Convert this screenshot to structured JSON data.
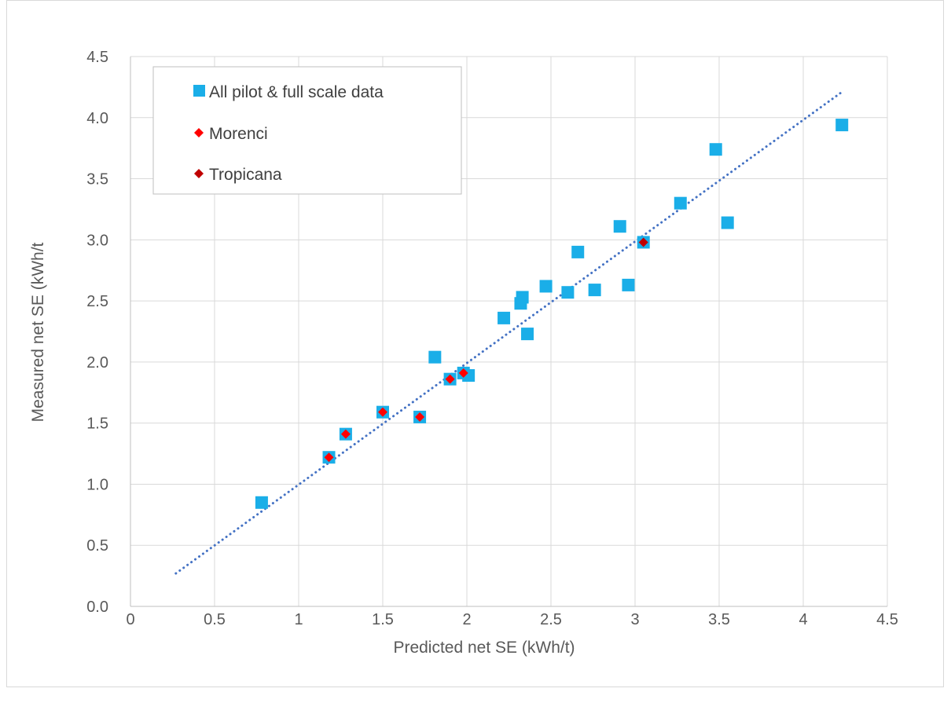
{
  "chart_data": {
    "type": "scatter",
    "title": "",
    "xlabel": "Predicted net SE (kWh/t)",
    "ylabel": "Measured net SE (kWh/t",
    "xlim": [
      0,
      4.5
    ],
    "ylim": [
      0,
      4.5
    ],
    "x_ticks": [
      "0",
      "0.5",
      "1",
      "1.5",
      "2",
      "2.5",
      "3",
      "3.5",
      "4",
      "4.5"
    ],
    "y_ticks": [
      "0.0",
      "0.5",
      "1.0",
      "1.5",
      "2.0",
      "2.5",
      "3.0",
      "3.5",
      "4.0",
      "4.5"
    ],
    "grid": true,
    "legend_position": "top-left",
    "series": [
      {
        "name": "All pilot & full scale data",
        "marker": "square",
        "color": "#1aaee8",
        "points": [
          [
            0.78,
            0.85
          ],
          [
            1.18,
            1.22
          ],
          [
            1.28,
            1.41
          ],
          [
            1.5,
            1.59
          ],
          [
            1.72,
            1.55
          ],
          [
            1.81,
            2.04
          ],
          [
            1.9,
            1.86
          ],
          [
            1.98,
            1.91
          ],
          [
            2.01,
            1.89
          ],
          [
            2.22,
            2.36
          ],
          [
            2.32,
            2.48
          ],
          [
            2.33,
            2.53
          ],
          [
            2.36,
            2.23
          ],
          [
            2.47,
            2.62
          ],
          [
            2.6,
            2.57
          ],
          [
            2.66,
            2.9
          ],
          [
            2.76,
            2.59
          ],
          [
            2.91,
            3.11
          ],
          [
            2.96,
            2.63
          ],
          [
            3.05,
            2.98
          ],
          [
            3.27,
            3.3
          ],
          [
            3.48,
            3.74
          ],
          [
            3.55,
            3.14
          ],
          [
            4.23,
            3.94
          ]
        ]
      },
      {
        "name": "Morenci",
        "marker": "diamond",
        "color": "#ff0000",
        "points": [
          [
            1.18,
            1.22
          ],
          [
            1.28,
            1.41
          ],
          [
            1.5,
            1.59
          ],
          [
            1.72,
            1.55
          ],
          [
            1.9,
            1.86
          ],
          [
            1.98,
            1.91
          ]
        ]
      },
      {
        "name": "Tropicana",
        "marker": "diamond",
        "color": "#c00000",
        "points": [
          [
            3.05,
            2.98
          ]
        ]
      }
    ],
    "trendline": {
      "style": "dotted",
      "color": "#4472c4",
      "from": [
        0.27,
        0.27
      ],
      "to": [
        4.23,
        4.21
      ]
    }
  }
}
